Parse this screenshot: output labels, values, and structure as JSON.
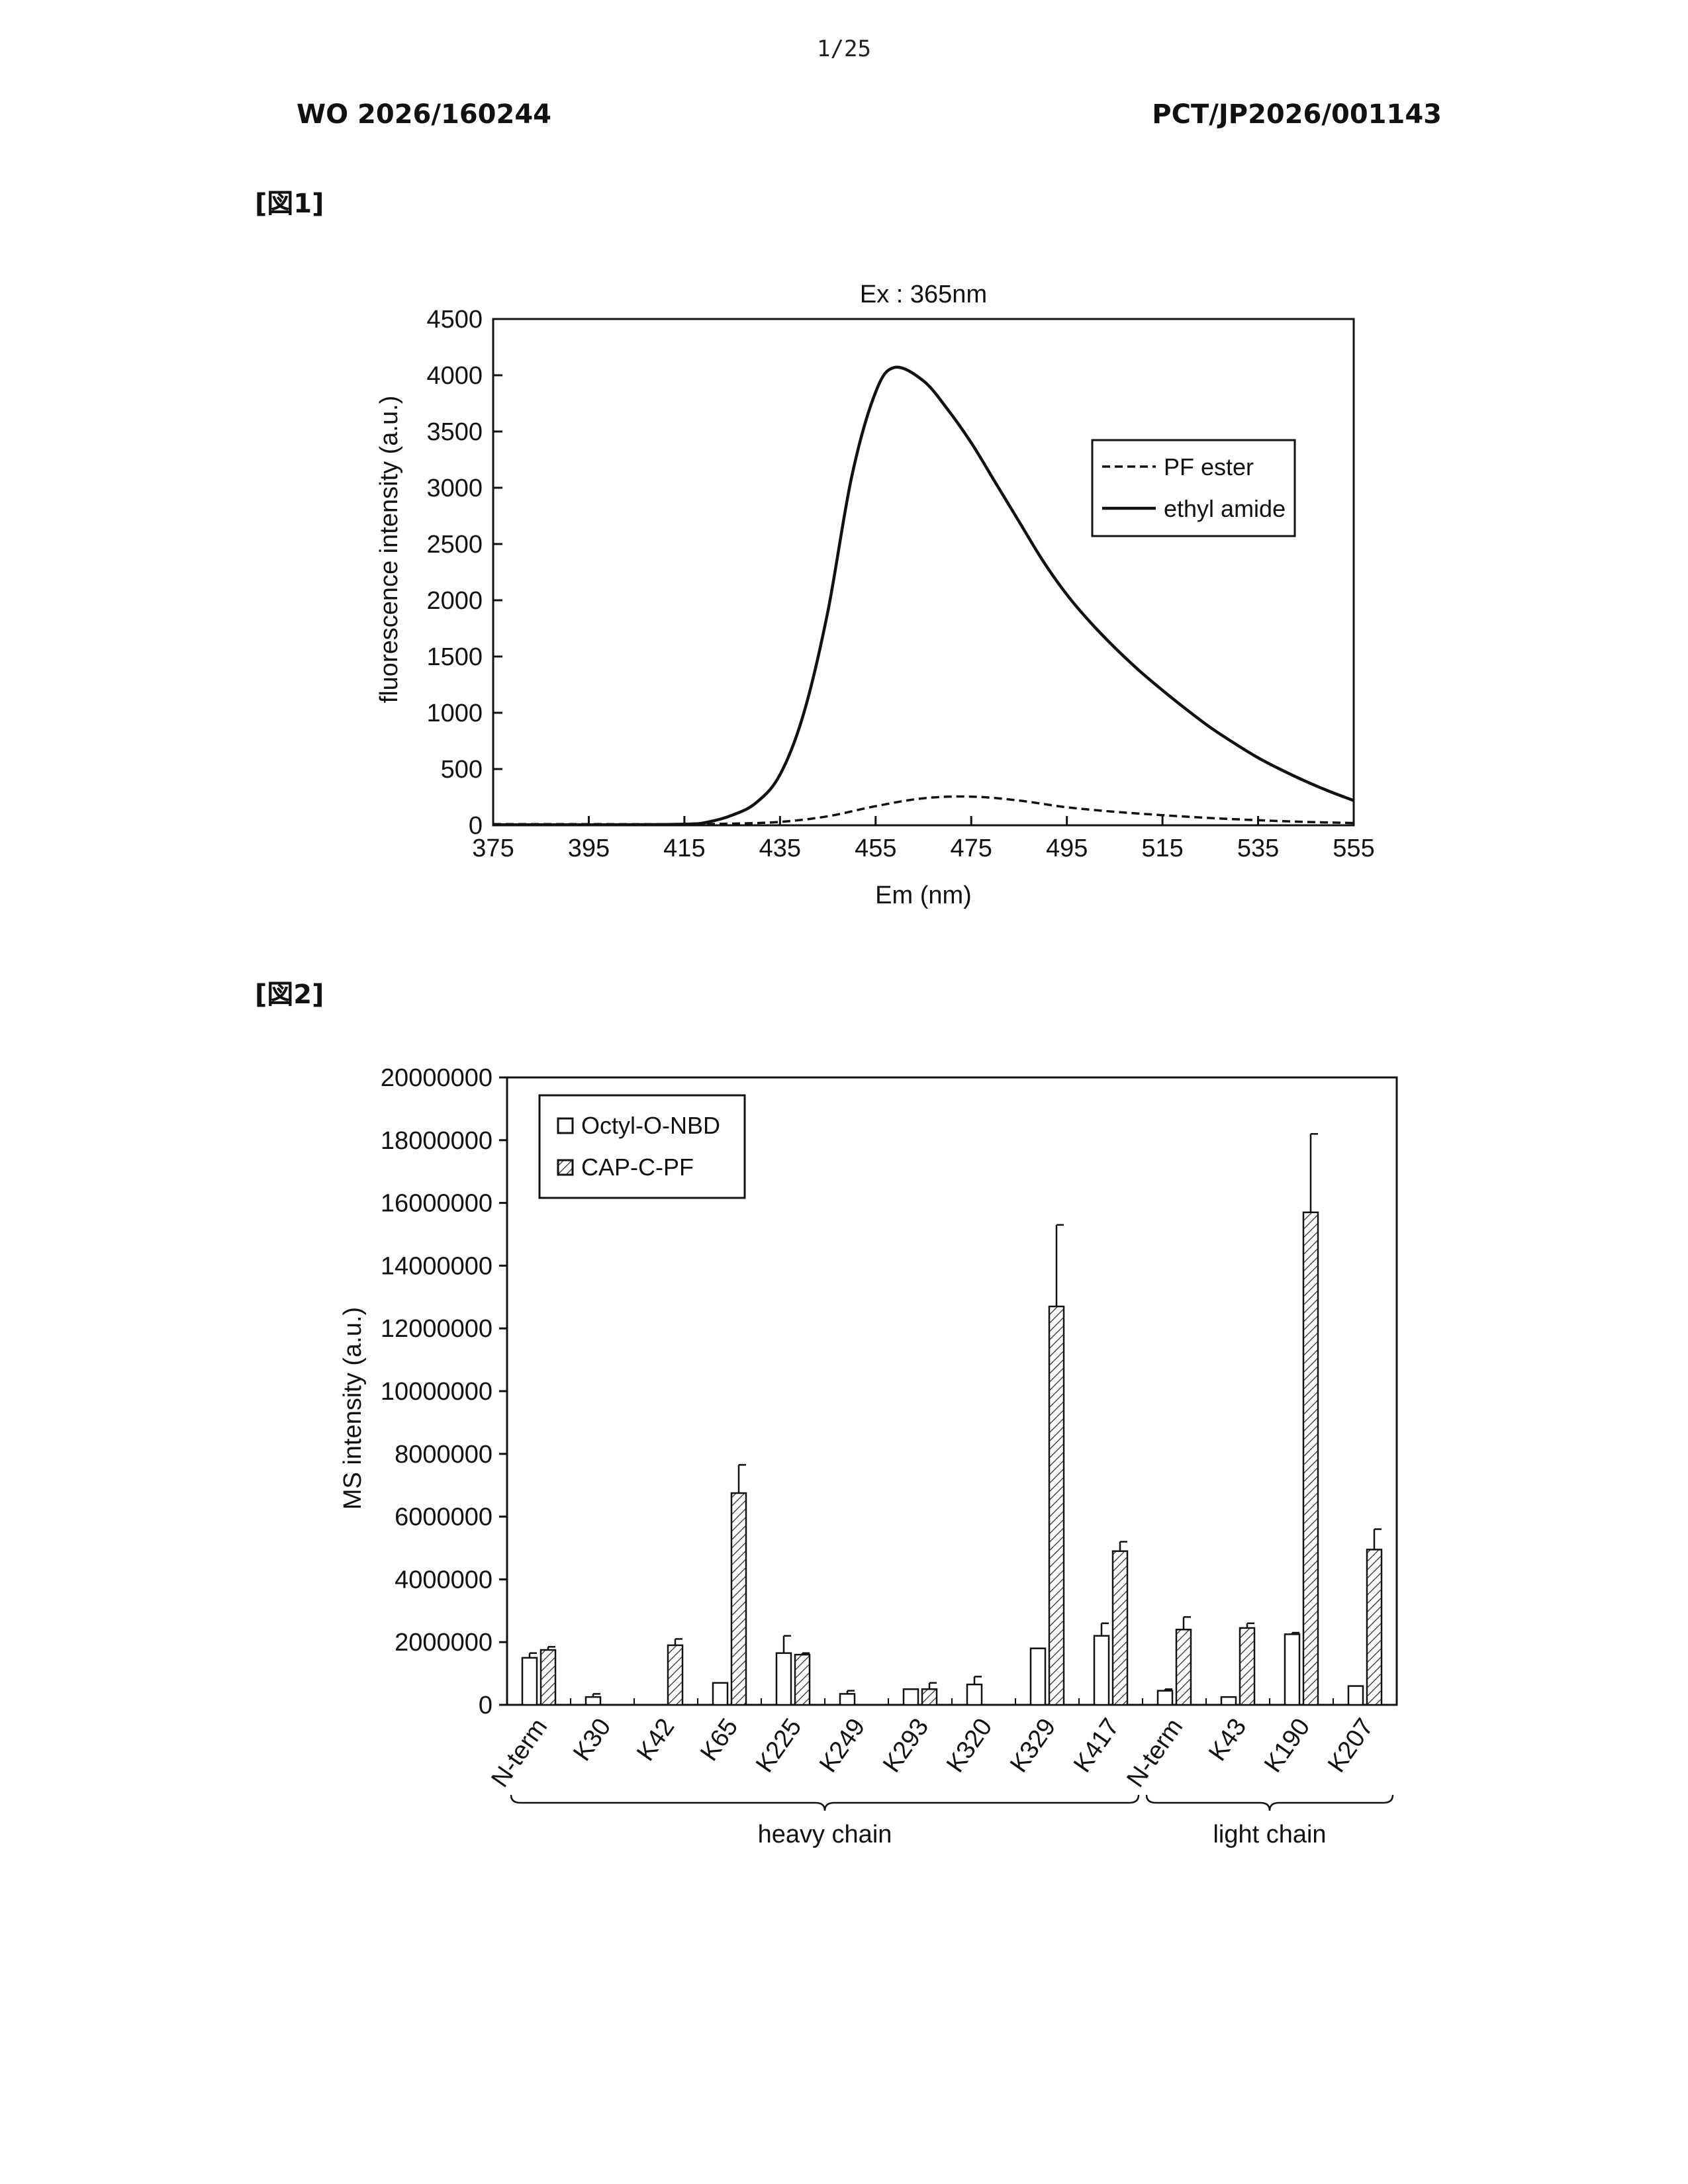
{
  "header": {
    "page_number": "1/25",
    "publication_number": "WO 2026/160244",
    "application_number": "PCT/JP2026/001143"
  },
  "figures": [
    {
      "label": "[図1]"
    },
    {
      "label": "[図2]"
    }
  ],
  "chart_data": [
    {
      "type": "line",
      "title": "Ex : 365nm",
      "xlabel": "Em (nm)",
      "ylabel": "fluorescence intensity (a.u.)",
      "xlim": [
        375,
        555
      ],
      "ylim": [
        0,
        4500
      ],
      "xticks": [
        375,
        395,
        415,
        435,
        455,
        475,
        495,
        515,
        535,
        555
      ],
      "yticks": [
        0,
        500,
        1000,
        1500,
        2000,
        2500,
        3000,
        3500,
        4000,
        4500
      ],
      "grid": false,
      "legend_position": "upper-right",
      "series": [
        {
          "name": "PF ester",
          "style": "dashed",
          "x": [
            375,
            395,
            415,
            425,
            435,
            445,
            455,
            465,
            475,
            485,
            495,
            505,
            515,
            525,
            535,
            545,
            555
          ],
          "y": [
            10,
            10,
            10,
            15,
            30,
            80,
            170,
            240,
            255,
            220,
            160,
            120,
            90,
            65,
            45,
            30,
            20
          ]
        },
        {
          "name": "ethyl amide",
          "style": "solid",
          "x": [
            375,
            395,
            415,
            420,
            425,
            430,
            435,
            440,
            445,
            450,
            455,
            459,
            465,
            470,
            475,
            480,
            485,
            490,
            495,
            500,
            505,
            510,
            515,
            520,
            525,
            530,
            535,
            540,
            545,
            550,
            555
          ],
          "y": [
            5,
            5,
            10,
            30,
            90,
            200,
            450,
            1000,
            1900,
            3100,
            3850,
            4070,
            3950,
            3700,
            3400,
            3050,
            2700,
            2350,
            2050,
            1800,
            1580,
            1380,
            1200,
            1030,
            870,
            730,
            600,
            490,
            390,
            300,
            220
          ]
        }
      ]
    },
    {
      "type": "bar",
      "xlabel": "",
      "ylabel": "MS intensity (a.u.)",
      "ylim": [
        0,
        20000000
      ],
      "yticks": [
        0,
        2000000,
        4000000,
        6000000,
        8000000,
        10000000,
        12000000,
        14000000,
        16000000,
        18000000,
        20000000
      ],
      "grid": false,
      "legend_position": "upper-left",
      "categories": [
        "N-term",
        "K30",
        "K42",
        "K65",
        "K225",
        "K249",
        "K293",
        "K320",
        "K329",
        "K417",
        "N-term",
        "K43",
        "K190",
        "K207"
      ],
      "groups": [
        {
          "label": "heavy chain",
          "start": 0,
          "end": 9
        },
        {
          "label": "light chain",
          "start": 10,
          "end": 13
        }
      ],
      "series": [
        {
          "name": "Octyl-O-NBD",
          "pattern": "open",
          "values": [
            1500000,
            250000,
            0,
            700000,
            1650000,
            350000,
            500000,
            650000,
            1800000,
            2200000,
            450000,
            250000,
            2250000,
            600000
          ],
          "errors": [
            150000,
            100000,
            0,
            0,
            550000,
            100000,
            0,
            250000,
            0,
            400000,
            50000,
            0,
            50000,
            0
          ]
        },
        {
          "name": "CAP-C-PF",
          "pattern": "hatched",
          "values": [
            1750000,
            0,
            1900000,
            6750000,
            1600000,
            0,
            500000,
            0,
            12700000,
            4900000,
            2400000,
            2450000,
            15700000,
            4950000
          ],
          "errors": [
            100000,
            0,
            200000,
            900000,
            50000,
            0,
            200000,
            0,
            2600000,
            300000,
            400000,
            150000,
            2500000,
            650000
          ]
        }
      ]
    }
  ]
}
